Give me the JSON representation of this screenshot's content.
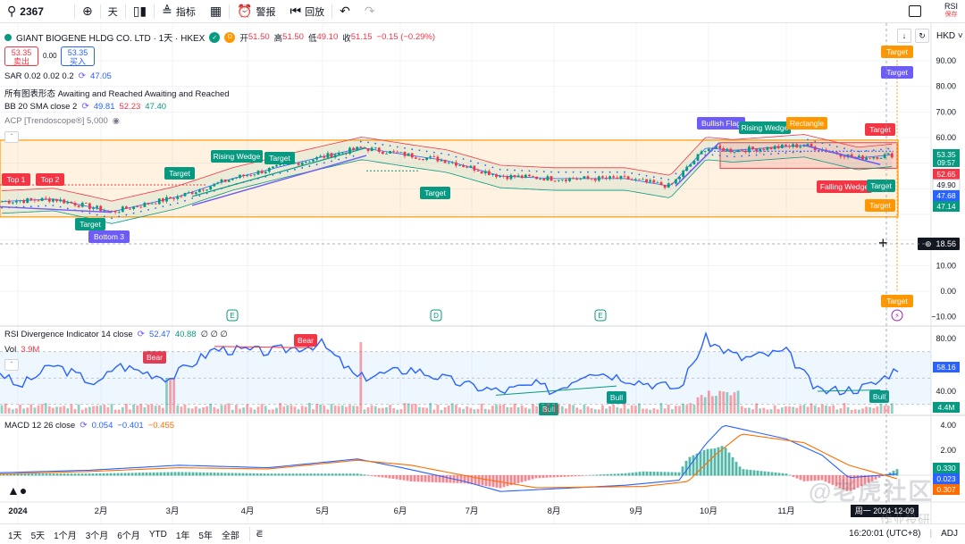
{
  "toolbar": {
    "symbol": "2367",
    "interval": "天",
    "indicators_label": "指标",
    "alert_label": "警报",
    "replay_label": "回放",
    "rsi_label": "RSI",
    "rsi_sub": "保存"
  },
  "instrument": {
    "title": "GIANT BIOGENE HLDG CO. LTD · 1天 · HKEX",
    "badge": "D",
    "open_label": "开",
    "open": "51.50",
    "high_label": "高",
    "high": "51.50",
    "low_label": "低",
    "low": "49.10",
    "close_label": "收",
    "close": "51.15",
    "change": "−0.15 (−0.29%)",
    "sell_price": "53.35",
    "sell_label": "卖出",
    "spread": "0.00",
    "buy_price": "53.35",
    "buy_label": "买入"
  },
  "legends": {
    "sar_label": "SAR 0.02 0.02 0.2",
    "sar_value": "47.05",
    "patterns_label": "所有图表形态 Awaiting and Reached Awaiting and Reached",
    "bb_label": "BB 20 SMA close 2",
    "bb_v1": "49.81",
    "bb_v2": "52.23",
    "bb_v3": "47.40",
    "acp_label": "ACP [Trendoscope®] 5,000",
    "rsi_label": "RSI Divergence Indicator 14 close",
    "rsi_v1": "52.47",
    "rsi_v2": "40.88",
    "rsi_v3": "∅ ∅ ∅",
    "vol_label": "Vol",
    "vol_value": "3.9M",
    "macd_label": "MACD 12 26 close",
    "macd_v1": "0.054",
    "macd_v2": "−0.401",
    "macd_v3": "−0.455"
  },
  "currency": "HKD",
  "price_axis": [
    "90.00",
    "80.00",
    "70.00",
    "60.00",
    "50.00",
    "40.00",
    "30.00",
    "20.00",
    "10.00",
    "0.00",
    "−10.00"
  ],
  "price_tags": [
    {
      "value": "53.35",
      "sub": "09:57",
      "color": "#089981"
    },
    {
      "value": "52.65",
      "color": "#f23645"
    },
    {
      "value": "49.90",
      "color": "#ffffff",
      "text_color": "#131722"
    },
    {
      "value": "47.68",
      "color": "#2962ff"
    },
    {
      "value": "47.14",
      "color": "#089981"
    }
  ],
  "crosshair_price": "18.56",
  "rsi_axis": [
    "80.00",
    "60.00",
    "40.00"
  ],
  "rsi_tag": "58.16",
  "vol_tag": "4.4M",
  "macd_axis": [
    "4.00",
    "2.00",
    "0.00",
    "−2.00"
  ],
  "macd_tags": [
    "0.330",
    "0.023",
    "0.307"
  ],
  "time_axis": [
    "2024",
    "2月",
    "3月",
    "4月",
    "5月",
    "6月",
    "7月",
    "8月",
    "9月",
    "10月",
    "11月"
  ],
  "crosshair_date": "周一 2024-12-09",
  "pattern_labels": {
    "top1": "Top 1",
    "top2": "Top 2",
    "bottom3": "Bottom 3",
    "target": "Target",
    "rising_wedge": "Rising Wedge",
    "bullish_flag": "Bullish Flag",
    "rectangle": "Rectangle",
    "falling_wedge": "Falling Wedge",
    "bear": "Bear",
    "bull": "Bull"
  },
  "event_markers": [
    "E",
    "D",
    "E"
  ],
  "range_buttons": [
    "1天",
    "5天",
    "1个月",
    "3个月",
    "6个月",
    "YTD",
    "1年",
    "5年",
    "全部"
  ],
  "bottom_status": {
    "time": "16:20:01 (UTC+8)",
    "adj": "ADJ"
  },
  "watermark": "@老虎社区",
  "watermark2": "作业投研",
  "colors": {
    "up": "#089981",
    "down": "#f23645",
    "bb": "#2962ff",
    "pattern_box": "#ff9800"
  }
}
